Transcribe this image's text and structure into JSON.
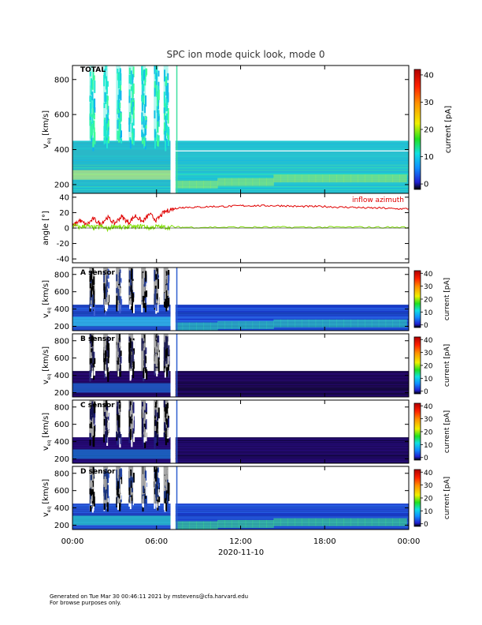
{
  "chart_data": [
    {
      "type": "heatmap",
      "panel": "total",
      "title": "SPC ion mode quick look, mode 0",
      "label": "TOTAL",
      "ylabel": "v_eq [km/s]",
      "ylabel_main": "v",
      "ylabel_sub": "eq",
      "ylabel_unit": "[km/s]",
      "ylim": [
        150,
        880
      ],
      "yticks": [
        200,
        400,
        600,
        800
      ],
      "colorbar": {
        "label": "current [pA]",
        "range": [
          -2,
          41
        ],
        "ticks": [
          0,
          10,
          20,
          30,
          40
        ]
      }
    },
    {
      "type": "line",
      "panel": "angle",
      "ylabel": "angle [°]",
      "ylim": [
        -45,
        45
      ],
      "yticks": [
        -40,
        -20,
        0,
        20,
        40
      ],
      "series": [
        {
          "name": "inflow azimuth",
          "color": "#e00000",
          "x": [
            0.0,
            0.5,
            1.0,
            1.5,
            2.0,
            2.5,
            3.0,
            3.5,
            4.0,
            4.5,
            5.0,
            5.5,
            6.0,
            6.5,
            7.0,
            7.5,
            8.0,
            9.0,
            10.0,
            11.0,
            12.0,
            13.0,
            14.0,
            15.0,
            16.0,
            17.0,
            18.0,
            19.0,
            20.0,
            21.0,
            22.0,
            23.0,
            24.0
          ],
          "y": [
            2,
            10,
            4,
            12,
            5,
            14,
            6,
            15,
            7,
            16,
            8,
            18,
            10,
            20,
            24,
            26,
            27,
            27,
            28,
            28,
            29,
            29,
            29,
            29,
            28,
            28,
            28,
            27,
            27,
            26,
            26,
            25,
            25
          ]
        },
        {
          "name": "",
          "color": "#7ee000",
          "x": [
            0.0,
            0.5,
            1.0,
            1.5,
            2.0,
            2.5,
            3.0,
            3.5,
            4.0,
            4.5,
            5.0,
            5.5,
            6.0,
            6.5,
            7.0,
            8.0,
            10.0,
            12.0,
            14.0,
            16.0,
            18.0,
            20.0,
            22.0,
            24.0
          ],
          "y": [
            4,
            1,
            3,
            0,
            2,
            -1,
            3,
            0,
            2,
            1,
            3,
            0,
            2,
            1,
            1,
            1,
            1,
            1,
            1,
            1,
            1,
            1,
            1,
            1
          ]
        }
      ]
    },
    {
      "type": "heatmap",
      "panel": "A",
      "label": "A sensor",
      "ylabel": "v_eq [km/s]",
      "ylim": [
        150,
        880
      ],
      "yticks": [
        200,
        400,
        600,
        800
      ],
      "colorbar": {
        "label": "current [pA]",
        "ticks": [
          0,
          10,
          20,
          30,
          40
        ]
      }
    },
    {
      "type": "heatmap",
      "panel": "B",
      "label": "B sensor",
      "ylabel": "v_eq [km/s]",
      "ylim": [
        150,
        880
      ],
      "yticks": [
        200,
        400,
        600,
        800
      ],
      "colorbar": {
        "label": "current [pA]",
        "ticks": [
          0,
          10,
          20,
          30,
          40
        ]
      }
    },
    {
      "type": "heatmap",
      "panel": "C",
      "label": "C sensor",
      "ylabel": "v_eq [km/s]",
      "ylim": [
        150,
        880
      ],
      "yticks": [
        200,
        400,
        600,
        800
      ],
      "colorbar": {
        "label": "current [pA]",
        "ticks": [
          0,
          10,
          20,
          30,
          40
        ]
      }
    },
    {
      "type": "heatmap",
      "panel": "D",
      "label": "D sensor",
      "ylabel": "v_eq [km/s]",
      "ylim": [
        150,
        880
      ],
      "yticks": [
        200,
        400,
        600,
        800
      ],
      "colorbar": {
        "label": "current [pA]",
        "ticks": [
          0,
          10,
          20,
          30,
          40
        ]
      }
    }
  ],
  "xaxis": {
    "range_hours": [
      0,
      24
    ],
    "ticks": [
      {
        "hour": 0,
        "label": "00:00"
      },
      {
        "hour": 6,
        "label": "06:00"
      },
      {
        "hour": 12,
        "label": "12:00"
      },
      {
        "hour": 18,
        "label": "18:00"
      },
      {
        "hour": 24,
        "label": "00:00"
      }
    ],
    "date_label": "2020-11-10"
  },
  "footer": {
    "line1": "Generated on Tue Mar 30 00:46:11 2021 by mstevens@cfa.harvard.edu",
    "line2": "For browse purposes only."
  }
}
